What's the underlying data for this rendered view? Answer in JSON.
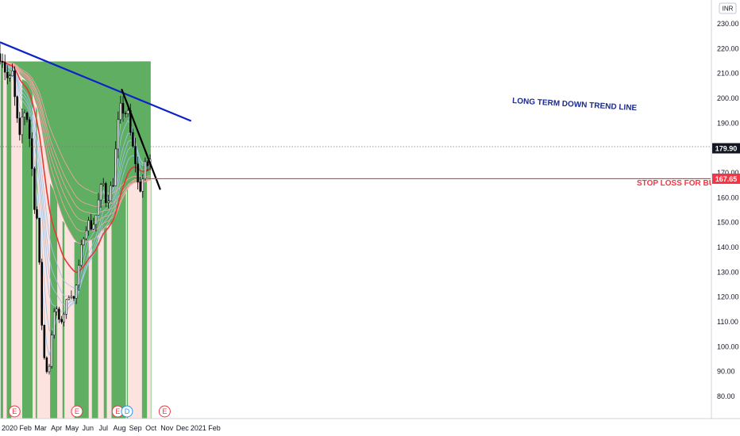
{
  "chart_data": {
    "type": "candlestick",
    "currency": "INR",
    "ylim": [
      73,
      238
    ],
    "y_ticks": [
      80,
      90,
      100,
      110,
      120,
      130,
      140,
      150,
      160,
      170,
      180,
      190,
      200,
      210,
      220,
      230
    ],
    "x_ticks": [
      "2020",
      "Feb",
      "Mar",
      "Apr",
      "May",
      "Jun",
      "Jul",
      "Aug",
      "Sep",
      "Oct",
      "Nov",
      "Dec",
      "2021",
      "Feb"
    ],
    "last_price": "179.90",
    "stop_loss_price": "167.65",
    "annotations": {
      "trend_line": "LONG TERM DOWN TREND LINE",
      "stop_loss": "STOP LOSS FOR BULLS"
    },
    "event_badges": [
      {
        "label": "E",
        "date": "2020-01-26",
        "color": "#f23645"
      },
      {
        "label": "E",
        "date": "2020-05-26",
        "color": "#f23645"
      },
      {
        "label": "E",
        "date": "2020-08-13",
        "color": "#f23645"
      },
      {
        "label": "D",
        "date": "2020-08-31",
        "color": "#2196f3"
      },
      {
        "label": "E",
        "date": "2020-11-12",
        "color": "#f23645"
      }
    ],
    "series_closes": {
      "dates": [
        "2020-01-01",
        "2020-01-08",
        "2020-01-15",
        "2020-01-22",
        "2020-01-29",
        "2020-02-05",
        "2020-02-12",
        "2020-02-19",
        "2020-02-26",
        "2020-03-04",
        "2020-03-11",
        "2020-03-18",
        "2020-03-25",
        "2020-04-01",
        "2020-04-08",
        "2020-04-15",
        "2020-04-22",
        "2020-04-29",
        "2020-05-06",
        "2020-05-13",
        "2020-05-20",
        "2020-05-27",
        "2020-06-03",
        "2020-06-10",
        "2020-06-17",
        "2020-06-24",
        "2020-07-01",
        "2020-07-08",
        "2020-07-15",
        "2020-07-22",
        "2020-07-29",
        "2020-08-05",
        "2020-08-12",
        "2020-08-19",
        "2020-08-26",
        "2020-09-02",
        "2020-09-09",
        "2020-09-16",
        "2020-09-23",
        "2020-09-30",
        "2020-10-07",
        "2020-10-14",
        "2020-10-16"
      ],
      "close": [
        218,
        211,
        206,
        210,
        194,
        183,
        196,
        193,
        181,
        158,
        150,
        112,
        92,
        89,
        108,
        117,
        109,
        112,
        118,
        123,
        119,
        127,
        139,
        148,
        150,
        148,
        152,
        160,
        167,
        158,
        163,
        167,
        187,
        196,
        195,
        193,
        182,
        175,
        162,
        167,
        174,
        172,
        180
      ]
    },
    "trend_lines": [
      {
        "name": "long-term-down-trend",
        "color": "#0d22c9",
        "from": {
          "date": "2019-12-30",
          "price": 222.5
        },
        "to": {
          "date": "2021-01-01",
          "price": 191
        }
      },
      {
        "name": "short-term-down-trend",
        "color": "#000000",
        "from": {
          "date": "2020-08-21",
          "price": 203.5
        },
        "to": {
          "date": "2020-11-03",
          "price": 163.5
        }
      }
    ],
    "trend_regime_bands": [
      {
        "from": "2019-12-30",
        "to": "2020-01-04",
        "regime": "bull"
      },
      {
        "from": "2020-01-04",
        "to": "2020-01-11",
        "regime": "bear"
      },
      {
        "from": "2020-01-11",
        "to": "2020-01-20",
        "regime": "bull"
      },
      {
        "from": "2020-01-20",
        "to": "2020-02-10",
        "regime": "bear"
      },
      {
        "from": "2020-02-10",
        "to": "2020-03-01",
        "regime": "bull"
      },
      {
        "from": "2020-03-01",
        "to": "2020-03-07",
        "regime": "bear"
      },
      {
        "from": "2020-03-07",
        "to": "2020-03-10",
        "regime": "bull"
      },
      {
        "from": "2020-03-10",
        "to": "2020-04-04",
        "regime": "bear"
      },
      {
        "from": "2020-04-04",
        "to": "2020-04-18",
        "regime": "bull"
      },
      {
        "from": "2020-04-18",
        "to": "2020-04-28",
        "regime": "bear"
      },
      {
        "from": "2020-04-28",
        "to": "2020-05-02",
        "regime": "bull"
      },
      {
        "from": "2020-05-02",
        "to": "2020-05-21",
        "regime": "bear"
      },
      {
        "from": "2020-05-21",
        "to": "2020-06-18",
        "regime": "bull"
      },
      {
        "from": "2020-06-18",
        "to": "2020-06-24",
        "regime": "bear"
      },
      {
        "from": "2020-06-24",
        "to": "2020-07-06",
        "regime": "bull"
      },
      {
        "from": "2020-07-06",
        "to": "2020-07-17",
        "regime": "bear"
      },
      {
        "from": "2020-07-17",
        "to": "2020-07-23",
        "regime": "bull"
      },
      {
        "from": "2020-07-23",
        "to": "2020-08-01",
        "regime": "bear"
      },
      {
        "from": "2020-08-01",
        "to": "2020-08-29",
        "regime": "bull"
      },
      {
        "from": "2020-08-29",
        "to": "2020-08-31",
        "regime": "bear"
      },
      {
        "from": "2020-08-31",
        "to": "2020-09-02",
        "regime": "bull"
      },
      {
        "from": "2020-09-02",
        "to": "2020-09-29",
        "regime": "bear"
      },
      {
        "from": "2020-09-29",
        "to": "2020-10-09",
        "regime": "bull"
      },
      {
        "from": "2020-10-09",
        "to": "2020-10-16",
        "regime": "bear"
      },
      {
        "from": "2020-10-16",
        "to": "2020-10-17",
        "regime": "bull"
      }
    ],
    "grid": false,
    "legend": "none"
  },
  "colors": {
    "bull_fill": "#5fae62",
    "bear_fill": "#fde3df",
    "candle": "#000000",
    "long_trend": "#0d22c9",
    "short_trend": "#000000",
    "stop_loss": "#f23645",
    "ma_fast": "#9fc5e8",
    "ma_slow": "#f4a6a6"
  }
}
